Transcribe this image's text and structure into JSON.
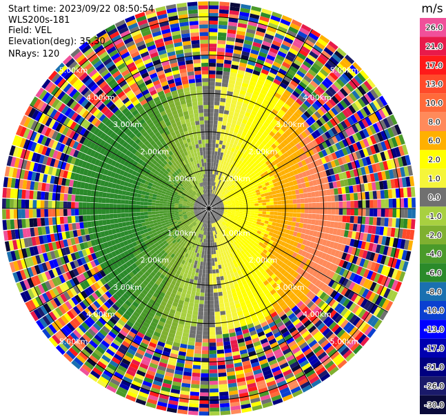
{
  "header": {
    "start_time": "Start time: 2023/09/22 08:50:54",
    "instrument": "WLS200s-181",
    "field": "Field: VEL",
    "elevation": "Elevation(deg): 35.30",
    "nrays": "NRays: 120"
  },
  "chart_data": {
    "type": "heatmap",
    "projection": "polar PPI",
    "field": "VEL",
    "units": "m/s",
    "nrays": 120,
    "range_rings_km": [
      1.0,
      2.0,
      3.0,
      4.0,
      5.0
    ],
    "range_ring_labels": [
      "1.00km",
      "2.00km",
      "3.00km",
      "4.00km",
      "5.00km"
    ],
    "max_range_km": 5.4,
    "azimuth_lines_deg": [
      0,
      30,
      60,
      90,
      120,
      150,
      180,
      210,
      240,
      270,
      300,
      330
    ],
    "colorbar": {
      "title": "m/s",
      "tick_labels": [
        "26.0",
        "21.0",
        "17.0",
        "13.0",
        "10.0",
        "8.0",
        "6.0",
        "2.0",
        "1.0",
        "0.0",
        "-1.0",
        "-2.0",
        "-4.0",
        "-6.0",
        "-8.0",
        "-10.0",
        "-13.0",
        "-17.0",
        "-21.0",
        "-26.0",
        "-30.0"
      ],
      "bins": [
        {
          "label": "26.0",
          "color": "#f0509a"
        },
        {
          "label": "21.0",
          "color": "#e81a4a"
        },
        {
          "label": "17.0",
          "color": "#ff1a1a"
        },
        {
          "label": "13.0",
          "color": "#ff4a2a"
        },
        {
          "label": "10.0",
          "color": "#ff6a3a"
        },
        {
          "label": "8.0",
          "color": "#ff8a5a"
        },
        {
          "label": "6.0",
          "color": "#ffb000"
        },
        {
          "label": "2.0",
          "color": "#ffff00"
        },
        {
          "label": "1.0",
          "color": "#f5f53a"
        },
        {
          "label": "0.0",
          "color": "#707070"
        },
        {
          "label": "-1.0",
          "color": "#a8d040"
        },
        {
          "label": "-2.0",
          "color": "#7fb030"
        },
        {
          "label": "-4.0",
          "color": "#4a9a2a"
        },
        {
          "label": "-6.0",
          "color": "#2a8a2a"
        },
        {
          "label": "-8.0",
          "color": "#1a70b0"
        },
        {
          "label": "-10.0",
          "color": "#0a40d0"
        },
        {
          "label": "-13.0",
          "color": "#0000ff"
        },
        {
          "label": "-17.0",
          "color": "#0000b0"
        },
        {
          "label": "-21.0",
          "color": "#000080"
        },
        {
          "label": "-26.0",
          "color": "#1a1a6a"
        },
        {
          "label": "-30.0",
          "color": "#0a0a3a"
        }
      ]
    }
  }
}
